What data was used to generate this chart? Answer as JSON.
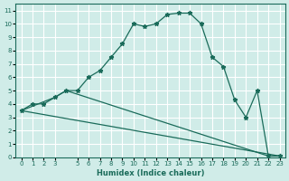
{
  "xlabel": "Humidex (Indice chaleur)",
  "ylabel": "",
  "bg_color": "#d0ece8",
  "grid_color": "#ffffff",
  "line_color": "#1a6b5a",
  "xlim": [
    -0.5,
    23.5
  ],
  "ylim": [
    0,
    11.5
  ],
  "xticks": [
    0,
    1,
    2,
    3,
    5,
    6,
    7,
    8,
    9,
    10,
    11,
    12,
    13,
    14,
    15,
    16,
    17,
    18,
    19,
    20,
    21,
    22,
    23
  ],
  "xtick_labels": [
    "0",
    "1",
    "2",
    "3",
    "5",
    "6",
    "7",
    "8",
    "9",
    "10",
    "11",
    "12",
    "13",
    "14",
    "15",
    "16",
    "17",
    "18",
    "19",
    "20",
    "21",
    "22",
    "23"
  ],
  "yticks": [
    0,
    1,
    2,
    3,
    4,
    5,
    6,
    7,
    8,
    9,
    10,
    11
  ],
  "series": [
    {
      "x": [
        0,
        1,
        2,
        3,
        4,
        5,
        6,
        7,
        8,
        9,
        10,
        11,
        12,
        13,
        14,
        15,
        16,
        17,
        18,
        19,
        20,
        21,
        22,
        23
      ],
      "y": [
        3.5,
        4.0,
        4.0,
        4.5,
        5.0,
        5.0,
        6.0,
        6.5,
        7.5,
        8.5,
        10.0,
        9.8,
        10.0,
        10.7,
        10.8,
        10.8,
        10.0,
        7.5,
        6.8,
        4.3,
        3.0,
        5.0,
        0.1,
        0.1
      ],
      "marker": true
    },
    {
      "x": [
        0,
        3,
        4,
        22,
        23
      ],
      "y": [
        3.5,
        4.5,
        5.0,
        0.1,
        0.1
      ],
      "marker": false
    },
    {
      "x": [
        0,
        23
      ],
      "y": [
        3.5,
        0.1
      ],
      "marker": false
    }
  ]
}
